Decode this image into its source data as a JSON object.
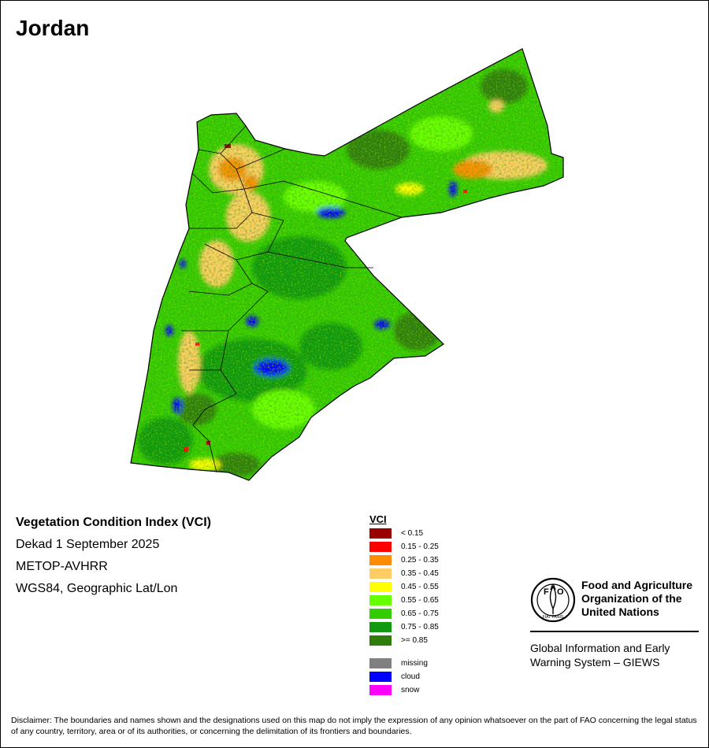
{
  "map_title": "Jordan",
  "info": {
    "title": "Vegetation Condition Index (VCI)",
    "period": "Dekad 1 September 2025",
    "sensor": "METOP-AVHRR",
    "projection": "WGS84, Geographic Lat/Lon"
  },
  "legend": {
    "title": "VCI",
    "classes": [
      {
        "label": "< 0.15",
        "color": "#990000"
      },
      {
        "label": "0.15 - 0.25",
        "color": "#ff0000"
      },
      {
        "label": "0.25 - 0.35",
        "color": "#ff8c00"
      },
      {
        "label": "0.35 - 0.45",
        "color": "#ffcc66"
      },
      {
        "label": "0.45 - 0.55",
        "color": "#ffff00"
      },
      {
        "label": "0.55 - 0.65",
        "color": "#66ff00"
      },
      {
        "label": "0.65 - 0.75",
        "color": "#33cc00"
      },
      {
        "label": "0.75 - 0.85",
        "color": "#119911"
      },
      {
        "label": ">= 0.85",
        "color": "#2e7d0a"
      }
    ],
    "special": [
      {
        "label": "missing",
        "color": "#808080"
      },
      {
        "label": "cloud",
        "color": "#0000ff"
      },
      {
        "label": "snow",
        "color": "#ff00ff"
      }
    ]
  },
  "fao": {
    "logo_letters": [
      "F",
      "A",
      "O"
    ],
    "logo_motto": "FIAT PANIS",
    "org_lines": [
      "Food and Agriculture",
      "Organization of the",
      "United Nations"
    ],
    "giews_lines": [
      "Global Information and Early",
      "Warning System – GIEWS"
    ]
  },
  "disclaimer": "Disclaimer: The boundaries and names shown and the designations used on this map do not imply the expression of any opinion whatsoever on the part of FAO concerning the legal status of any country, territory, area or of its authorities, or concerning the delimitation of its frontiers and boundaries."
}
